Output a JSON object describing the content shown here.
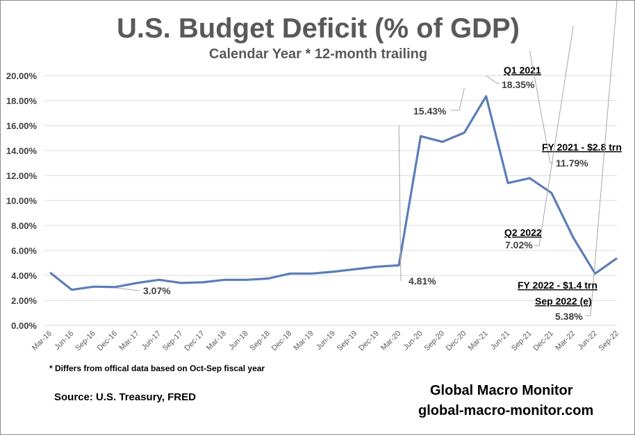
{
  "chart_data": {
    "type": "line",
    "title": "U.S. Budget Deficit (% of GDP)",
    "subtitle": "Calendar Year * 12-month trailing",
    "xlabel": "",
    "ylabel": "",
    "ylim": [
      0,
      20
    ],
    "yticks": [
      "0.00%",
      "2.00%",
      "4.00%",
      "6.00%",
      "8.00%",
      "10.00%",
      "12.00%",
      "14.00%",
      "16.00%",
      "18.00%",
      "20.00%"
    ],
    "grid": true,
    "line_color": "#5b7db8",
    "categories": [
      "Mar-16",
      "Jun-16",
      "Sep-16",
      "Dec-16",
      "Mar-17",
      "Jun-17",
      "Sep-17",
      "Dec-17",
      "Mar-18",
      "Jun-18",
      "Sep-18",
      "Dec-18",
      "Mar-19",
      "Jun-19",
      "Sep-19",
      "Dec-19",
      "Mar-20",
      "Jun-20",
      "Sep-20",
      "Dec-20",
      "Mar-21",
      "Jun-21",
      "Sep-21",
      "Dec-21",
      "Mar-22",
      "Jun-22",
      "Sep-22"
    ],
    "values": [
      4.23,
      2.85,
      3.1,
      3.07,
      3.4,
      3.65,
      3.4,
      3.45,
      3.65,
      3.65,
      3.75,
      4.15,
      4.15,
      4.3,
      4.5,
      4.7,
      4.81,
      15.15,
      14.7,
      15.43,
      18.35,
      11.4,
      11.79,
      10.6,
      7.02,
      4.15,
      5.38
    ],
    "annotations": [
      {
        "index": 3,
        "label": "3.07%"
      },
      {
        "index": 16,
        "label": "4.81%"
      },
      {
        "index": 19,
        "label": "15.43%"
      },
      {
        "index": 20,
        "heading": "Q1 2021",
        "label": "18.35%"
      },
      {
        "index": 22,
        "heading": "FY 2021 - $2.8 trn",
        "label": "11.79%"
      },
      {
        "index": 24,
        "heading": "Q2 2022",
        "label": "7.02%"
      },
      {
        "index": 26,
        "heading": "FY 2022 - $1.4 trn",
        "subheading": "Sep 2022 (e)",
        "label": "5.38%"
      }
    ]
  },
  "footnote": "* Differs from offical data based on Oct-Sep fiscal year",
  "source": "Source:  U.S. Treasury,  FRED",
  "brand": {
    "name": "Global Macro Monitor",
    "site": "global-macro-monitor.com"
  }
}
